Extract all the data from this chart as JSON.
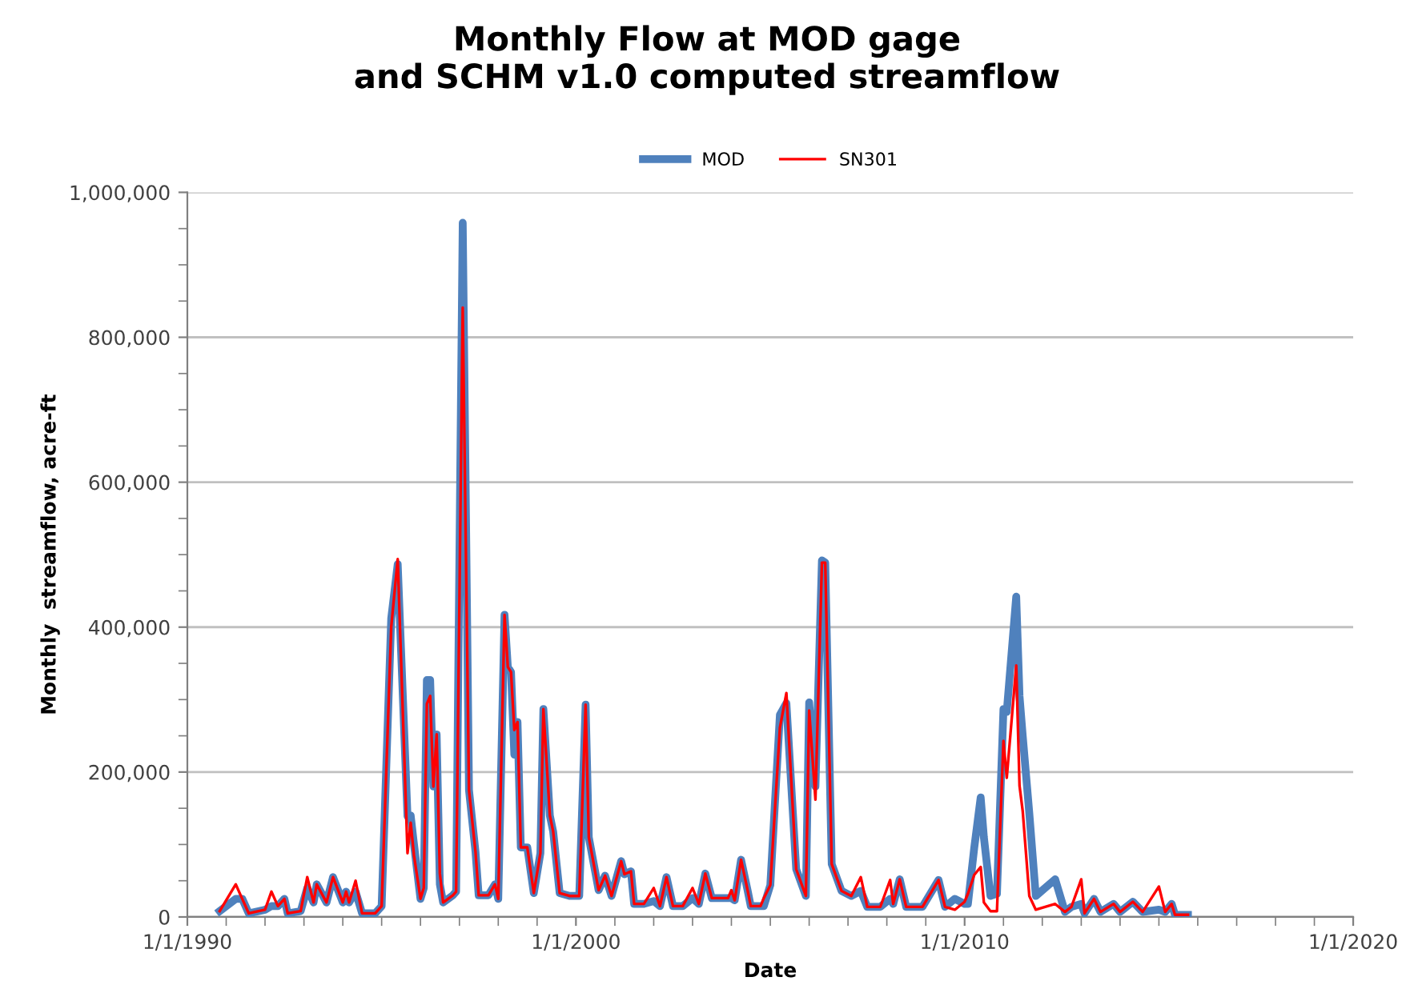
{
  "chart_data": {
    "type": "line",
    "title": "Monthly Flow at MOD gage\nand SCHM v1.0 computed streamflow",
    "xlabel": "Date",
    "ylabel": "Monthly  streamflow, acre-ft",
    "legend": "top",
    "grid": "y",
    "marker": "none",
    "line_style": "solid",
    "xlim": [
      "1990-01-01",
      "2020-01-01"
    ],
    "xticks": [
      {
        "value": "1990-01-01",
        "label": "1/1/1990"
      },
      {
        "value": "1991-01-01",
        "label": null
      },
      {
        "value": "1992-01-01",
        "label": null
      },
      {
        "value": "1993-01-01",
        "label": null
      },
      {
        "value": "1994-01-01",
        "label": null
      },
      {
        "value": "1995-01-01",
        "label": null
      },
      {
        "value": "1996-01-01",
        "label": null
      },
      {
        "value": "1997-01-01",
        "label": null
      },
      {
        "value": "1998-01-01",
        "label": null
      },
      {
        "value": "1999-01-01",
        "label": null
      },
      {
        "value": "2000-01-01",
        "label": "1/1/2000"
      },
      {
        "value": "2001-01-01",
        "label": null
      },
      {
        "value": "2002-01-01",
        "label": null
      },
      {
        "value": "2003-01-01",
        "label": null
      },
      {
        "value": "2004-01-01",
        "label": null
      },
      {
        "value": "2005-01-01",
        "label": null
      },
      {
        "value": "2006-01-01",
        "label": null
      },
      {
        "value": "2007-01-01",
        "label": null
      },
      {
        "value": "2008-01-01",
        "label": null
      },
      {
        "value": "2009-01-01",
        "label": null
      },
      {
        "value": "2010-01-01",
        "label": "1/1/2010"
      },
      {
        "value": "2011-01-01",
        "label": null
      },
      {
        "value": "2012-01-01",
        "label": null
      },
      {
        "value": "2013-01-01",
        "label": null
      },
      {
        "value": "2014-01-01",
        "label": null
      },
      {
        "value": "2015-01-01",
        "label": null
      },
      {
        "value": "2016-01-01",
        "label": null
      },
      {
        "value": "2017-01-01",
        "label": null
      },
      {
        "value": "2018-01-01",
        "label": null
      },
      {
        "value": "2019-01-01",
        "label": null
      },
      {
        "value": "2020-01-01",
        "label": "1/1/2020"
      }
    ],
    "ylim": [
      0,
      1000000
    ],
    "yticks": [
      {
        "value": 0,
        "label": "0"
      },
      {
        "value": 50000,
        "label": null
      },
      {
        "value": 100000,
        "label": null
      },
      {
        "value": 150000,
        "label": null
      },
      {
        "value": 200000,
        "label": "200,000"
      },
      {
        "value": 250000,
        "label": null
      },
      {
        "value": 300000,
        "label": null
      },
      {
        "value": 350000,
        "label": null
      },
      {
        "value": 400000,
        "label": "400,000"
      },
      {
        "value": 450000,
        "label": null
      },
      {
        "value": 500000,
        "label": null
      },
      {
        "value": 550000,
        "label": null
      },
      {
        "value": 600000,
        "label": "600,000"
      },
      {
        "value": 650000,
        "label": null
      },
      {
        "value": 700000,
        "label": null
      },
      {
        "value": 750000,
        "label": null
      },
      {
        "value": 800000,
        "label": "800,000"
      },
      {
        "value": 850000,
        "label": null
      },
      {
        "value": 900000,
        "label": null
      },
      {
        "value": 950000,
        "label": null
      },
      {
        "value": 1000000,
        "label": "1,000,000"
      }
    ],
    "x": [
      "1990-11",
      "1991-04",
      "1991-06",
      "1991-08",
      "1992-01",
      "1992-03",
      "1992-05",
      "1992-07",
      "1992-08",
      "1992-12",
      "1993-02",
      "1993-04",
      "1993-05",
      "1993-08",
      "1993-10",
      "1994-01",
      "1994-02",
      "1994-03",
      "1994-05",
      "1994-07",
      "1994-11",
      "1995-01",
      "1995-04",
      "1995-06",
      "1995-09",
      "1995-10",
      "1995-11",
      "1996-01",
      "1996-02",
      "1996-03",
      "1996-04",
      "1996-05",
      "1996-06",
      "1996-07",
      "1996-08",
      "1996-11",
      "1996-12",
      "1997-02",
      "1997-04",
      "1997-06",
      "1997-07",
      "1997-10",
      "1997-12",
      "1998-01",
      "1998-03",
      "1998-04",
      "1998-05",
      "1998-06",
      "1998-07",
      "1998-08",
      "1998-10",
      "1998-12",
      "1999-02",
      "1999-03",
      "1999-05",
      "1999-06",
      "1999-08",
      "1999-11",
      "2000-02",
      "2000-04",
      "2000-05",
      "2000-08",
      "2000-10",
      "2000-12",
      "2001-03",
      "2001-04",
      "2001-06",
      "2001-07",
      "2001-10",
      "2002-01",
      "2002-03",
      "2002-05",
      "2002-07",
      "2002-10",
      "2003-01",
      "2003-03",
      "2003-05",
      "2003-07",
      "2003-12",
      "2004-01",
      "2004-02",
      "2004-04",
      "2004-06",
      "2004-07",
      "2004-10",
      "2004-11",
      "2005-01",
      "2005-04",
      "2005-06",
      "2005-09",
      "2005-12",
      "2006-01",
      "2006-03",
      "2006-05",
      "2006-06",
      "2006-08",
      "2006-11",
      "2007-02",
      "2007-05",
      "2007-07",
      "2007-11",
      "2008-02",
      "2008-03",
      "2008-05",
      "2008-07",
      "2008-12",
      "2009-05",
      "2009-07",
      "2009-10",
      "2010-01",
      "2010-02",
      "2010-04",
      "2010-06",
      "2010-07",
      "2010-09",
      "2010-11",
      "2011-01",
      "2011-02",
      "2011-05",
      "2011-06",
      "2011-07",
      "2011-09",
      "2011-11",
      "2012-05",
      "2012-08",
      "2012-10",
      "2013-01",
      "2013-02",
      "2013-05",
      "2013-07",
      "2013-11",
      "2014-01",
      "2014-05",
      "2014-08",
      "2015-01",
      "2015-03",
      "2015-05",
      "2015-06",
      "2015-10"
    ],
    "series": [
      {
        "name": "MOD",
        "color": "#4f81bd",
        "values": [
          8000,
          25000,
          25000,
          5000,
          10000,
          15000,
          15000,
          25000,
          5000,
          8000,
          40000,
          20000,
          45000,
          20000,
          55000,
          20000,
          35000,
          20000,
          35000,
          5000,
          5000,
          15000,
          412000,
          487000,
          139000,
          140000,
          100000,
          25000,
          40000,
          327000,
          327000,
          180000,
          252000,
          45000,
          20000,
          30000,
          35000,
          958000,
          175000,
          90000,
          30000,
          30000,
          45000,
          25000,
          417000,
          345000,
          338000,
          224000,
          269000,
          96000,
          96000,
          33000,
          88000,
          287000,
          140000,
          118000,
          33000,
          29000,
          29000,
          293000,
          110000,
          37000,
          57000,
          29000,
          77000,
          59000,
          63000,
          18000,
          18000,
          22000,
          15000,
          55000,
          15000,
          15000,
          26000,
          18000,
          60000,
          26000,
          26000,
          26000,
          23000,
          79000,
          37000,
          15000,
          15000,
          15000,
          44000,
          279000,
          295000,
          66000,
          29000,
          296000,
          180000,
          492000,
          489000,
          73000,
          36000,
          29000,
          36000,
          14000,
          14000,
          25000,
          18000,
          52000,
          14000,
          14000,
          51000,
          14000,
          25000,
          18000,
          18000,
          95000,
          165000,
          110000,
          29000,
          32000,
          287000,
          283000,
          442000,
          305000,
          250000,
          143000,
          29000,
          52000,
          7000,
          14000,
          18000,
          5000,
          25000,
          7000,
          18000,
          7000,
          21000,
          7000,
          10000,
          7000,
          18000,
          3000,
          3000
        ]
      },
      {
        "name": "SN301",
        "color": "#ff0000",
        "values": [
          8000,
          45000,
          25000,
          5000,
          10000,
          35000,
          15000,
          25000,
          5000,
          8000,
          55000,
          20000,
          45000,
          20000,
          55000,
          20000,
          35000,
          20000,
          50000,
          5000,
          5000,
          15000,
          400000,
          494000,
          88000,
          130000,
          85000,
          25000,
          40000,
          294000,
          305000,
          180000,
          252000,
          60000,
          20000,
          30000,
          35000,
          841000,
          175000,
          90000,
          30000,
          30000,
          45000,
          25000,
          417000,
          345000,
          338000,
          258000,
          269000,
          96000,
          96000,
          33000,
          88000,
          287000,
          140000,
          118000,
          33000,
          29000,
          29000,
          293000,
          110000,
          37000,
          57000,
          29000,
          77000,
          59000,
          63000,
          18000,
          18000,
          40000,
          15000,
          55000,
          15000,
          15000,
          40000,
          18000,
          60000,
          26000,
          26000,
          37000,
          23000,
          79000,
          37000,
          15000,
          15000,
          26000,
          44000,
          261000,
          309000,
          66000,
          29000,
          285000,
          162000,
          489000,
          489000,
          73000,
          36000,
          29000,
          55000,
          14000,
          14000,
          51000,
          18000,
          52000,
          14000,
          14000,
          51000,
          14000,
          10000,
          21000,
          32000,
          58000,
          69000,
          20000,
          8000,
          8000,
          243000,
          192000,
          347000,
          181000,
          146000,
          29000,
          10000,
          18000,
          7000,
          14000,
          52000,
          5000,
          25000,
          7000,
          18000,
          7000,
          21000,
          7000,
          42000,
          7000,
          18000,
          3000,
          3000
        ]
      }
    ]
  }
}
